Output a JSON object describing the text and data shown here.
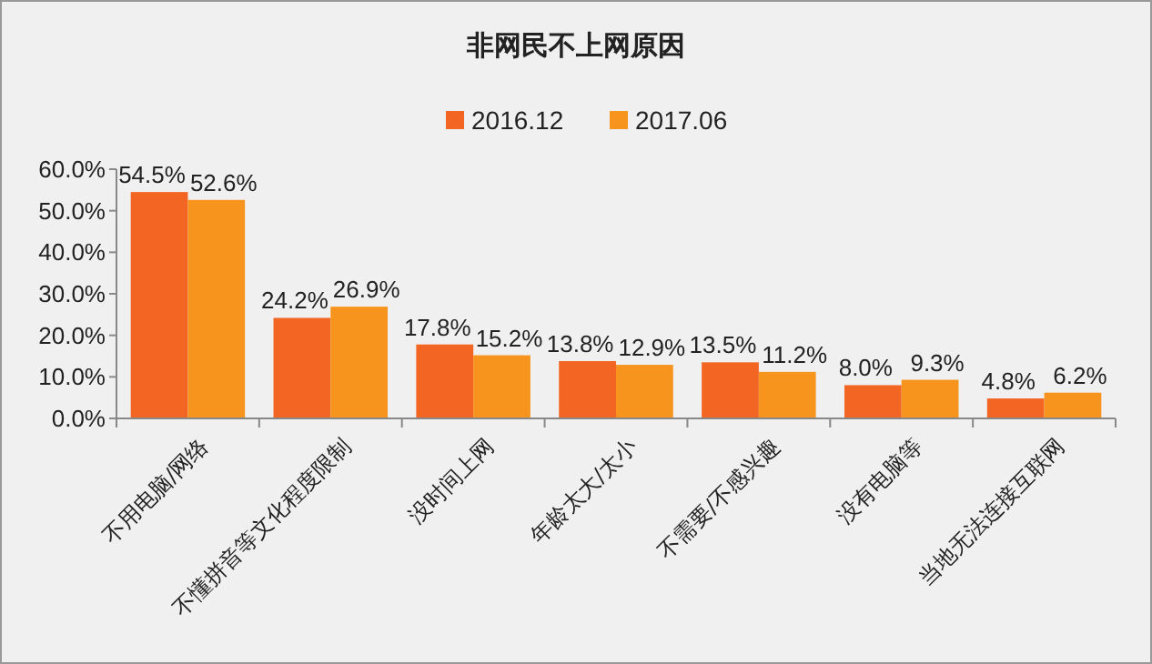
{
  "chart_data": {
    "type": "bar",
    "title": "非网民不上网原因",
    "categories": [
      "不用电脑/网络",
      "不懂拼音等文化程度限制",
      "没时间上网",
      "年龄太大/太小",
      "不需要/不感兴趣",
      "没有电脑等",
      "当地无法连接互联网"
    ],
    "series": [
      {
        "name": "2016.12",
        "color": "#f26522",
        "values": [
          54.5,
          24.2,
          17.8,
          13.8,
          13.5,
          8.0,
          4.8
        ],
        "value_labels": [
          "54.5%",
          "24.2%",
          "17.8%",
          "13.8%",
          "13.5%",
          "8.0%",
          "4.8%"
        ]
      },
      {
        "name": "2017.06",
        "color": "#f7941d",
        "values": [
          52.6,
          26.9,
          15.2,
          12.9,
          11.2,
          9.3,
          6.2
        ],
        "value_labels": [
          "52.6%",
          "26.9%",
          "15.2%",
          "12.9%",
          "11.2%",
          "9.3%",
          "6.2%"
        ]
      }
    ],
    "ylim": [
      0,
      60
    ],
    "yticks": [
      {
        "value": 0,
        "label": "0.0%"
      },
      {
        "value": 10,
        "label": "10.0%"
      },
      {
        "value": 20,
        "label": "20.0%"
      },
      {
        "value": 30,
        "label": "30.0%"
      },
      {
        "value": 40,
        "label": "40.0%"
      },
      {
        "value": 50,
        "label": "50.0%"
      },
      {
        "value": 60,
        "label": "60.0%"
      }
    ],
    "grid": false,
    "legend": "top"
  }
}
